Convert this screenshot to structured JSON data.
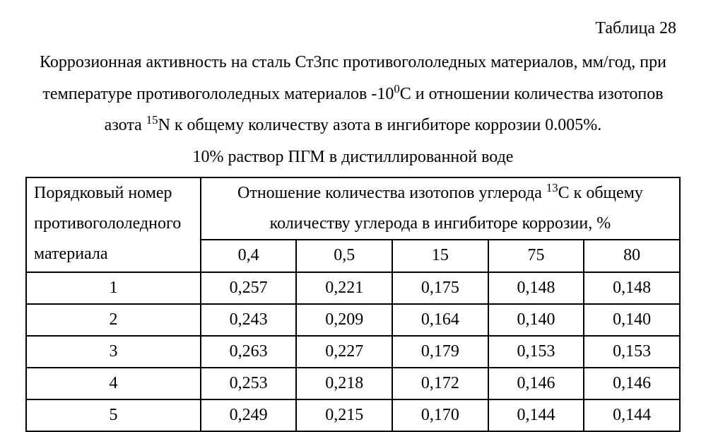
{
  "label": "Таблица 28",
  "caption": {
    "l1": "Коррозионная активность на сталь Ст3пс противогололедных материалов, мм/год, при",
    "l2a": "температуре противогололедных материалов -10",
    "l2b": "С и отношении количества изотопов",
    "l3a": "азота ",
    "l3b": "N  к общему количеству азота в ингибиторе коррозии 0.005%.",
    "l4": "10% раствор ПГМ в дистиллированной воде",
    "sup0": "0",
    "sup15": "15"
  },
  "header": {
    "rowhead_l1": "Порядковый номер",
    "rowhead_l2": "противогололедного",
    "rowhead_l3": "материала",
    "group_l1a": "Отношение количества изотопов углерода ",
    "group_sup": "13",
    "group_l1b": "С к общему",
    "group_l2": "количеству углерода в ингибиторе коррозии, %"
  },
  "cols": [
    "0,4",
    "0,5",
    "15",
    "75",
    "80"
  ],
  "rows": [
    {
      "n": "1",
      "v": [
        "0,257",
        "0,221",
        "0,175",
        "0,148",
        "0,148"
      ]
    },
    {
      "n": "2",
      "v": [
        "0,243",
        "0,209",
        "0,164",
        "0,140",
        "0,140"
      ]
    },
    {
      "n": "3",
      "v": [
        "0,263",
        "0,227",
        "0,179",
        "0,153",
        "0,153"
      ]
    },
    {
      "n": "4",
      "v": [
        "0,253",
        "0,218",
        "0,172",
        "0,146",
        "0,146"
      ]
    },
    {
      "n": "5",
      "v": [
        "0,249",
        "0,215",
        "0,170",
        "0,144",
        "0,144"
      ]
    }
  ],
  "colwidths": [
    "247px",
    "136px",
    "136px",
    "136px",
    "136px",
    "136px"
  ]
}
